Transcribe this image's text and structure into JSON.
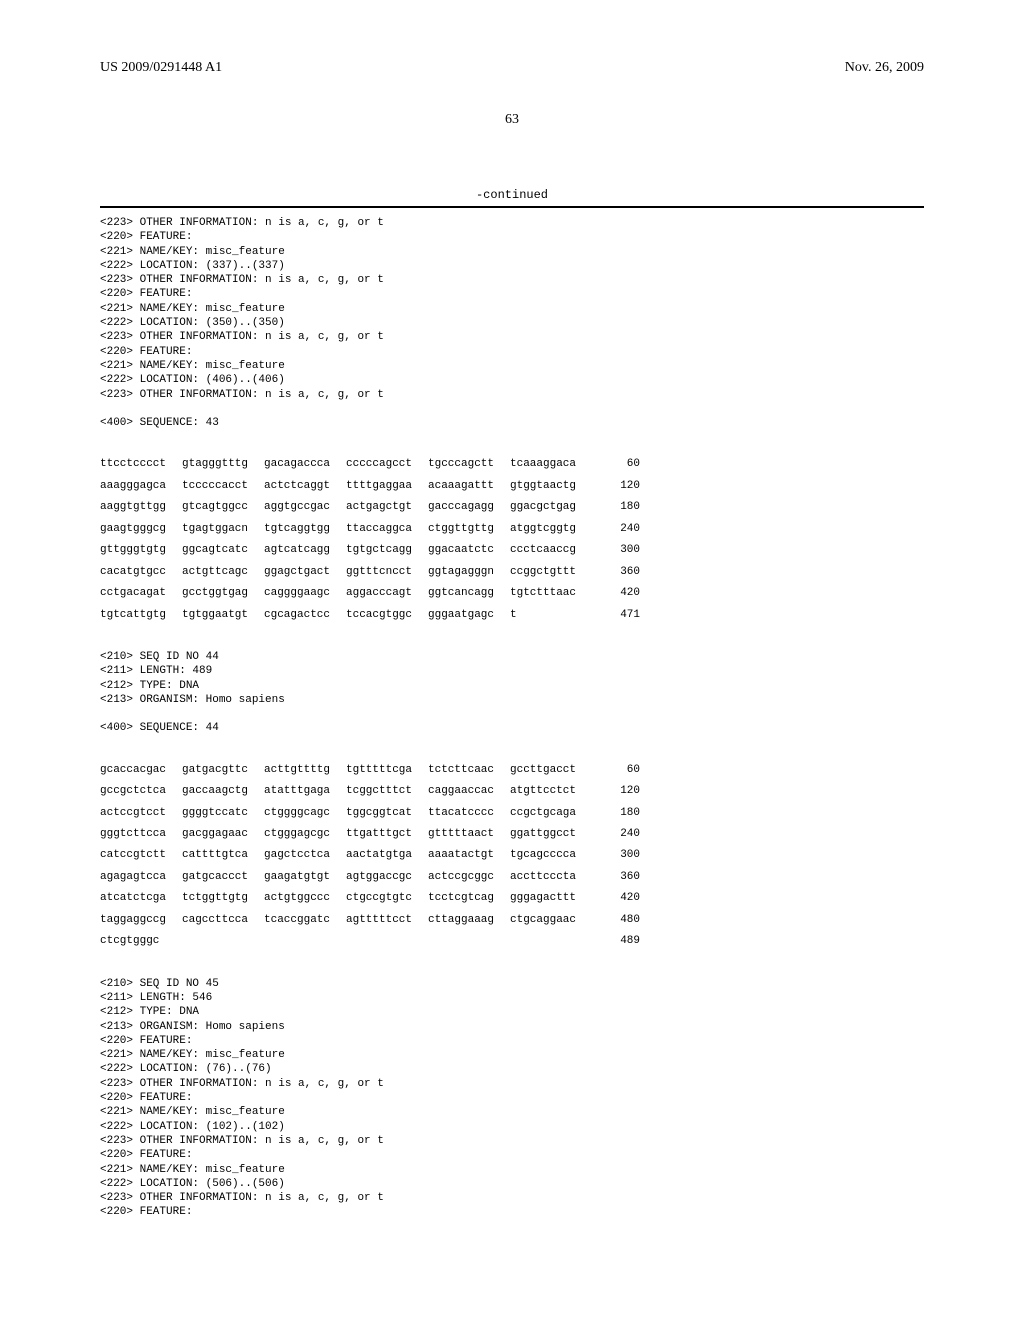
{
  "header": {
    "left": "US 2009/0291448 A1",
    "right": "Nov. 26, 2009"
  },
  "page_number": "63",
  "continued": "-continued",
  "block1": {
    "lines": [
      "<223> OTHER INFORMATION: n is a, c, g, or t",
      "<220> FEATURE:",
      "<221> NAME/KEY: misc_feature",
      "<222> LOCATION: (337)..(337)",
      "<223> OTHER INFORMATION: n is a, c, g, or t",
      "<220> FEATURE:",
      "<221> NAME/KEY: misc_feature",
      "<222> LOCATION: (350)..(350)",
      "<223> OTHER INFORMATION: n is a, c, g, or t",
      "<220> FEATURE:",
      "<221> NAME/KEY: misc_feature",
      "<222> LOCATION: (406)..(406)",
      "<223> OTHER INFORMATION: n is a, c, g, or t",
      "",
      "<400> SEQUENCE: 43"
    ]
  },
  "seq43": [
    {
      "cells": [
        "ttcctcccct",
        "gtagggtttg",
        "gacagaccca",
        "cccccagcct",
        "tgcccagctt",
        "tcaaaggaca"
      ],
      "num": "60"
    },
    {
      "cells": [
        "aaagggagca",
        "tcccccacct",
        "actctcaggt",
        "ttttgaggaa",
        "acaaagattt",
        "gtggtaactg"
      ],
      "num": "120"
    },
    {
      "cells": [
        "aaggtgttgg",
        "gtcagtggcc",
        "aggtgccgac",
        "actgagctgt",
        "gacccagagg",
        "ggacgctgag"
      ],
      "num": "180"
    },
    {
      "cells": [
        "gaagtgggcg",
        "tgagtggacn",
        "tgtcaggtgg",
        "ttaccaggca",
        "ctggttgttg",
        "atggtcggtg"
      ],
      "num": "240"
    },
    {
      "cells": [
        "gttgggtgtg",
        "ggcagtcatc",
        "agtcatcagg",
        "tgtgctcagg",
        "ggacaatctc",
        "ccctcaaccg"
      ],
      "num": "300"
    },
    {
      "cells": [
        "cacatgtgcc",
        "actgttcagc",
        "ggagctgact",
        "ggtttcncct",
        "ggtagagggn",
        "ccggctgttt"
      ],
      "num": "360"
    },
    {
      "cells": [
        "cctgacagat",
        "gcctggtgag",
        "caggggaagc",
        "aggacccagt",
        "ggtcancagg",
        "tgtctttaac"
      ],
      "num": "420"
    },
    {
      "cells": [
        "tgtcattgtg",
        "tgtggaatgt",
        "cgcagactcc",
        "tccacgtggc",
        "gggaatgagc",
        "t"
      ],
      "num": "471"
    }
  ],
  "block2": {
    "lines": [
      "<210> SEQ ID NO 44",
      "<211> LENGTH: 489",
      "<212> TYPE: DNA",
      "<213> ORGANISM: Homo sapiens",
      "",
      "<400> SEQUENCE: 44"
    ]
  },
  "seq44": [
    {
      "cells": [
        "gcaccacgac",
        "gatgacgttc",
        "acttgttttg",
        "tgtttttcga",
        "tctcttcaac",
        "gccttgacct"
      ],
      "num": "60"
    },
    {
      "cells": [
        "gccgctctca",
        "gaccaagctg",
        "atatttgaga",
        "tcggctttct",
        "caggaaccac",
        "atgttcctct"
      ],
      "num": "120"
    },
    {
      "cells": [
        "actccgtcct",
        "ggggtccatc",
        "ctggggcagc",
        "tggcggtcat",
        "ttacatcccc",
        "ccgctgcaga"
      ],
      "num": "180"
    },
    {
      "cells": [
        "gggtcttcca",
        "gacggagaac",
        "ctgggagcgc",
        "ttgatttgct",
        "gtttttaact",
        "ggattggcct"
      ],
      "num": "240"
    },
    {
      "cells": [
        "catccgtctt",
        "cattttgtca",
        "gagctcctca",
        "aactatgtga",
        "aaaatactgt",
        "tgcagcccca"
      ],
      "num": "300"
    },
    {
      "cells": [
        "agagagtcca",
        "gatgcaccct",
        "gaagatgtgt",
        "agtggaccgc",
        "actccgcggc",
        "accttcccta"
      ],
      "num": "360"
    },
    {
      "cells": [
        "atcatctcga",
        "tctggttgtg",
        "actgtggccc",
        "ctgccgtgtc",
        "tcctcgtcag",
        "gggagacttt"
      ],
      "num": "420"
    },
    {
      "cells": [
        "taggaggccg",
        "cagccttcca",
        "tcaccggatc",
        "agtttttcct",
        "cttaggaaag",
        "ctgcaggaac"
      ],
      "num": "480"
    },
    {
      "cells": [
        "ctcgtgggc",
        "",
        "",
        "",
        "",
        ""
      ],
      "num": "489"
    }
  ],
  "block3": {
    "lines": [
      "<210> SEQ ID NO 45",
      "<211> LENGTH: 546",
      "<212> TYPE: DNA",
      "<213> ORGANISM: Homo sapiens",
      "<220> FEATURE:",
      "<221> NAME/KEY: misc_feature",
      "<222> LOCATION: (76)..(76)",
      "<223> OTHER INFORMATION: n is a, c, g, or t",
      "<220> FEATURE:",
      "<221> NAME/KEY: misc_feature",
      "<222> LOCATION: (102)..(102)",
      "<223> OTHER INFORMATION: n is a, c, g, or t",
      "<220> FEATURE:",
      "<221> NAME/KEY: misc_feature",
      "<222> LOCATION: (506)..(506)",
      "<223> OTHER INFORMATION: n is a, c, g, or t",
      "<220> FEATURE:"
    ]
  }
}
